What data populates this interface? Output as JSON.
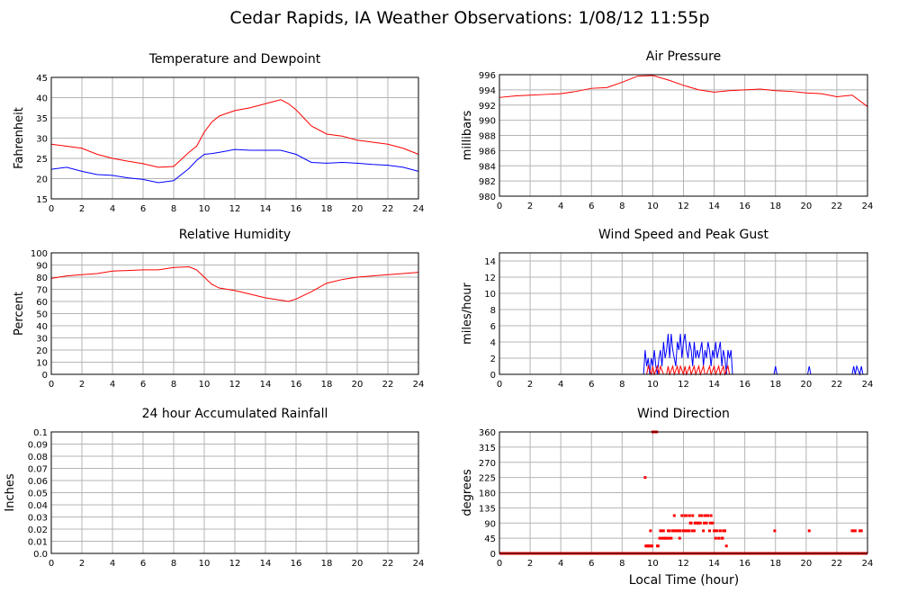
{
  "page_title": "Cedar Rapids, IA Weather Observations: 1/08/12 11:55p",
  "x_axis_label": "Local Time (hour)",
  "x_ticks": [
    0,
    2,
    4,
    6,
    8,
    10,
    12,
    14,
    16,
    18,
    20,
    22,
    24
  ],
  "chart_data": [
    {
      "id": "temp",
      "type": "line",
      "title": "Temperature and Dewpoint",
      "ylabel": "Fahrenheit",
      "xlim": [
        0,
        24
      ],
      "ylim": [
        15,
        45
      ],
      "yticks": [
        15,
        20,
        25,
        30,
        35,
        40,
        45
      ],
      "grid": true,
      "series": [
        {
          "color": "#ff0000",
          "x": [
            0,
            1,
            2,
            3,
            4,
            5,
            6,
            7,
            8,
            9,
            9.5,
            10,
            10.5,
            11,
            12,
            13,
            14,
            15,
            15.5,
            16,
            17,
            18,
            19,
            20,
            21,
            22,
            23,
            24
          ],
          "y": [
            28.5,
            28,
            27.5,
            26,
            25,
            24.3,
            23.7,
            22.8,
            23,
            26.5,
            28,
            31.5,
            34,
            35.5,
            36.8,
            37.5,
            38.5,
            39.5,
            38.5,
            37,
            33,
            31,
            30.5,
            29.5,
            29,
            28.5,
            27.5,
            26
          ]
        },
        {
          "color": "#0000ff",
          "x": [
            0,
            1,
            2,
            3,
            4,
            5,
            6,
            7,
            8,
            9,
            9.5,
            10,
            10.5,
            11,
            12,
            13,
            14,
            15,
            15.5,
            16,
            17,
            18,
            19,
            20,
            21,
            22,
            23,
            24
          ],
          "y": [
            22.3,
            22.8,
            21.8,
            21,
            20.8,
            20.2,
            19.8,
            19,
            19.5,
            22.5,
            24.5,
            26,
            26.2,
            26.5,
            27.2,
            27,
            27,
            27,
            26.5,
            26,
            24,
            23.8,
            24,
            23.8,
            23.5,
            23.3,
            22.8,
            21.8
          ]
        }
      ]
    },
    {
      "id": "pressure",
      "type": "line",
      "title": "Air Pressure",
      "ylabel": "millibars",
      "xlim": [
        0,
        24
      ],
      "ylim": [
        980,
        996
      ],
      "yticks": [
        980,
        982,
        984,
        986,
        988,
        990,
        992,
        994,
        996
      ],
      "grid": true,
      "series": [
        {
          "color": "#ff0000",
          "x": [
            0,
            1,
            2,
            3,
            4,
            5,
            6,
            7,
            8,
            9,
            10,
            11,
            12,
            13,
            14,
            15,
            16,
            17,
            18,
            19,
            20,
            21,
            22,
            23,
            24
          ],
          "y": [
            993,
            993.2,
            993.3,
            993.4,
            993.5,
            993.8,
            994.2,
            994.3,
            995,
            995.8,
            995.9,
            995.3,
            994.6,
            994,
            993.7,
            993.9,
            994,
            994.1,
            993.9,
            993.8,
            993.6,
            993.5,
            993.1,
            993.3,
            991.8
          ]
        }
      ]
    },
    {
      "id": "rh",
      "type": "line",
      "title": "Relative Humidity",
      "ylabel": "Percent",
      "xlim": [
        0,
        24
      ],
      "ylim": [
        0,
        100
      ],
      "yticks": [
        0,
        10,
        20,
        30,
        40,
        50,
        60,
        70,
        80,
        90,
        100
      ],
      "grid": true,
      "series": [
        {
          "color": "#ff0000",
          "x": [
            0,
            1,
            2,
            3,
            4,
            5,
            6,
            7,
            8,
            9,
            9.5,
            10,
            10.5,
            11,
            12,
            13,
            14,
            15,
            15.5,
            16,
            17,
            18,
            19,
            20,
            21,
            22,
            23,
            24
          ],
          "y": [
            79,
            81,
            82,
            83,
            85,
            85.5,
            86,
            86,
            88,
            88.5,
            86,
            80,
            74,
            71,
            69,
            66,
            63,
            61,
            60,
            62,
            68,
            75,
            78,
            80,
            81,
            82,
            83,
            84
          ]
        }
      ]
    },
    {
      "id": "wind",
      "type": "line",
      "title": "Wind Speed and Peak Gust",
      "ylabel": "miles/hour",
      "xlim": [
        0,
        24
      ],
      "ylim": [
        0,
        15
      ],
      "yticks": [
        0,
        2,
        4,
        6,
        8,
        10,
        12,
        14
      ],
      "grid": true,
      "series": [
        {
          "color": "#0000ff",
          "x": [
            0,
            9.4,
            9.5,
            9.6,
            9.7,
            9.8,
            9.9,
            10,
            10.1,
            10.2,
            10.3,
            10.4,
            10.5,
            10.6,
            10.7,
            10.8,
            10.9,
            11,
            11.1,
            11.2,
            11.3,
            11.4,
            11.5,
            11.6,
            11.7,
            11.8,
            11.9,
            12,
            12.1,
            12.2,
            12.3,
            12.4,
            12.5,
            12.6,
            12.7,
            12.8,
            12.9,
            13,
            13.1,
            13.2,
            13.3,
            13.4,
            13.5,
            13.6,
            13.7,
            13.8,
            13.9,
            14,
            14.1,
            14.2,
            14.3,
            14.4,
            14.5,
            14.6,
            14.7,
            14.8,
            14.9,
            15,
            15.1,
            15.2,
            15.3,
            17.9,
            18,
            18.1,
            20.1,
            20.2,
            20.3,
            23,
            23.1,
            23.2,
            23.3,
            23.5,
            23.6,
            23.7,
            24
          ],
          "y": [
            0,
            0,
            3,
            1,
            2,
            0,
            2,
            1,
            3,
            1,
            0,
            2,
            3,
            1,
            4,
            2,
            3,
            5,
            2,
            5,
            3,
            2,
            1,
            4,
            3,
            5,
            2,
            4,
            5,
            3,
            2,
            4,
            3,
            1,
            4,
            2,
            3,
            2,
            3,
            4,
            1,
            3,
            2,
            4,
            3,
            1,
            3,
            2,
            4,
            2,
            3,
            4,
            1,
            3,
            2,
            0,
            3,
            2,
            3,
            0,
            0,
            0,
            1,
            0,
            0,
            1,
            0,
            0,
            1,
            0,
            1,
            0,
            1,
            0,
            0
          ]
        },
        {
          "color": "#ff0000",
          "x": [
            0,
            9.4,
            9.5,
            9.6,
            9.7,
            9.9,
            10,
            10.1,
            10.3,
            10.4,
            10.5,
            10.7,
            10.9,
            11,
            11.1,
            11.3,
            11.4,
            11.6,
            11.7,
            11.8,
            12,
            12.1,
            12.2,
            12.4,
            12.5,
            12.7,
            12.8,
            13,
            13.1,
            13.3,
            13.4,
            13.5,
            13.7,
            13.8,
            14,
            14.1,
            14.3,
            14.4,
            14.6,
            14.7,
            14.9,
            15,
            15.3,
            24
          ],
          "y": [
            0,
            0,
            0,
            0,
            1,
            0,
            1,
            0,
            1,
            0,
            1,
            0,
            0,
            1,
            0,
            1,
            0,
            1,
            0,
            1,
            0,
            1,
            0,
            1,
            0,
            1,
            0,
            1,
            0,
            1,
            0,
            0,
            1,
            0,
            1,
            0,
            1,
            0,
            1,
            0,
            1,
            0,
            0,
            0
          ]
        }
      ]
    },
    {
      "id": "rain",
      "type": "line",
      "title": "24 hour Accumulated Rainfall",
      "ylabel": "Inches",
      "xlim": [
        0,
        24
      ],
      "ylim": [
        0,
        0.1
      ],
      "yticks": [
        0.0,
        0.01,
        0.02,
        0.03,
        0.04,
        0.05,
        0.06,
        0.07,
        0.08,
        0.09,
        0.1
      ],
      "ytick_labels": [
        "0.0",
        "0.01",
        "0.02",
        "0.03",
        "0.04",
        "0.05",
        "0.06",
        "0.07",
        "0.08",
        "0.09",
        "0.1"
      ],
      "grid": true,
      "series": [
        {
          "color": "#ff0000",
          "x": [
            0,
            24
          ],
          "y": [
            0,
            0
          ]
        }
      ]
    },
    {
      "id": "winddir",
      "type": "scatter",
      "title": "Wind Direction",
      "ylabel": "degrees",
      "xlim": [
        0,
        24
      ],
      "ylim": [
        0,
        360
      ],
      "yticks": [
        0,
        45,
        90,
        135,
        180,
        225,
        270,
        315,
        360
      ],
      "grid": true,
      "series": [
        {
          "color": "#ff0000",
          "x": [
            9.5,
            9.55,
            9.6,
            9.65,
            9.7,
            9.75,
            9.8,
            9.85,
            9.9,
            9.95,
            10.0,
            10.1,
            10.2,
            10.25,
            10.3,
            10.35,
            10.45,
            10.5,
            10.55,
            10.6,
            10.7,
            10.75,
            10.8,
            10.9,
            11.0,
            11.05,
            11.1,
            11.2,
            11.3,
            11.35,
            11.4,
            11.5,
            11.6,
            11.7,
            11.75,
            11.8,
            11.9,
            12.0,
            12.05,
            12.1,
            12.15,
            12.2,
            12.3,
            12.35,
            12.4,
            12.45,
            12.5,
            12.55,
            12.6,
            12.7,
            12.75,
            12.8,
            12.9,
            13.0,
            13.05,
            13.1,
            13.2,
            13.3,
            13.35,
            13.4,
            13.45,
            13.5,
            13.6,
            13.7,
            13.75,
            13.8,
            13.9,
            14.0,
            14.05,
            14.1,
            14.2,
            14.3,
            14.4,
            14.5,
            14.55,
            14.6,
            14.7,
            14.8,
            15.0,
            15.2,
            17.95,
            20.2,
            23.0,
            23.1,
            23.2,
            23.5,
            23.6
          ],
          "y": [
            225,
            22,
            22,
            22,
            22,
            22,
            22,
            67,
            22,
            22,
            360,
            360,
            360,
            360,
            22,
            22,
            45,
            67,
            67,
            45,
            67,
            45,
            45,
            45,
            67,
            45,
            67,
            45,
            67,
            67,
            112,
            67,
            67,
            67,
            45,
            67,
            112,
            67,
            67,
            112,
            67,
            112,
            67,
            67,
            112,
            90,
            90,
            67,
            112,
            67,
            90,
            90,
            90,
            90,
            112,
            90,
            112,
            67,
            90,
            112,
            112,
            90,
            112,
            67,
            90,
            112,
            90,
            67,
            67,
            45,
            67,
            45,
            67,
            45,
            45,
            67,
            67,
            22,
            0,
            0,
            67,
            67,
            67,
            67,
            67,
            67,
            67
          ],
          "baseline": {
            "x": [
              0,
              15.3,
              24
            ],
            "y": [
              0,
              0,
              0
            ]
          }
        }
      ]
    }
  ]
}
